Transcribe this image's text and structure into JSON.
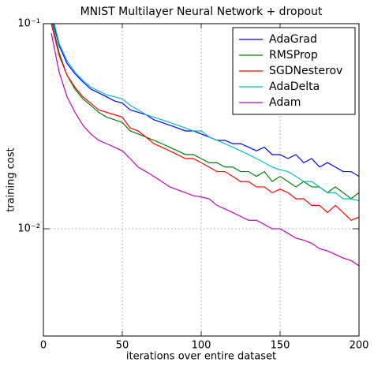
{
  "chart_data": {
    "type": "line",
    "title": "MNIST Multilayer Neural Network + dropout",
    "xlabel": "iterations over entire dataset",
    "ylabel": "training cost",
    "x": [
      5,
      10,
      15,
      20,
      25,
      30,
      35,
      40,
      45,
      50,
      55,
      60,
      65,
      70,
      75,
      80,
      85,
      90,
      95,
      100,
      105,
      110,
      115,
      120,
      125,
      130,
      135,
      140,
      145,
      150,
      155,
      160,
      165,
      170,
      175,
      180,
      185,
      190,
      195,
      200
    ],
    "series": [
      {
        "name": "AdaGrad",
        "color": "#0000ff",
        "values": [
          0.11,
          0.078,
          0.064,
          0.057,
          0.052,
          0.048,
          0.046,
          0.044,
          0.042,
          0.041,
          0.038,
          0.037,
          0.036,
          0.034,
          0.033,
          0.032,
          0.031,
          0.03,
          0.03,
          0.029,
          0.028,
          0.027,
          0.027,
          0.026,
          0.026,
          0.025,
          0.024,
          0.025,
          0.023,
          0.023,
          0.022,
          0.023,
          0.021,
          0.022,
          0.02,
          0.021,
          0.02,
          0.019,
          0.019,
          0.018
        ]
      },
      {
        "name": "RMSProp",
        "color": "#008000",
        "values": [
          0.105,
          0.072,
          0.056,
          0.048,
          0.043,
          0.04,
          0.037,
          0.035,
          0.034,
          0.033,
          0.03,
          0.029,
          0.028,
          0.027,
          0.026,
          0.025,
          0.024,
          0.023,
          0.023,
          0.022,
          0.021,
          0.021,
          0.02,
          0.02,
          0.019,
          0.019,
          0.018,
          0.019,
          0.017,
          0.018,
          0.017,
          0.016,
          0.017,
          0.016,
          0.016,
          0.015,
          0.016,
          0.015,
          0.014,
          0.015
        ]
      },
      {
        "name": "SGDNesterov",
        "color": "#ff0000",
        "values": [
          0.1,
          0.07,
          0.056,
          0.049,
          0.044,
          0.041,
          0.038,
          0.037,
          0.036,
          0.035,
          0.031,
          0.03,
          0.028,
          0.026,
          0.025,
          0.024,
          0.023,
          0.022,
          0.022,
          0.021,
          0.02,
          0.019,
          0.019,
          0.018,
          0.017,
          0.017,
          0.016,
          0.016,
          0.015,
          0.0156,
          0.015,
          0.014,
          0.014,
          0.013,
          0.013,
          0.012,
          0.013,
          0.012,
          0.011,
          0.0114
        ]
      },
      {
        "name": "AdaDelta",
        "color": "#00bfbf",
        "values": [
          0.115,
          0.08,
          0.066,
          0.058,
          0.053,
          0.049,
          0.047,
          0.045,
          0.044,
          0.043,
          0.04,
          0.038,
          0.036,
          0.035,
          0.034,
          0.033,
          0.032,
          0.031,
          0.03,
          0.03,
          0.028,
          0.027,
          0.026,
          0.025,
          0.024,
          0.023,
          0.022,
          0.021,
          0.02,
          0.0194,
          0.019,
          0.018,
          0.017,
          0.017,
          0.016,
          0.015,
          0.015,
          0.014,
          0.014,
          0.0137
        ]
      },
      {
        "name": "Adam",
        "color": "#bf00bf",
        "values": [
          0.09,
          0.058,
          0.044,
          0.037,
          0.032,
          0.029,
          0.027,
          0.026,
          0.025,
          0.024,
          0.022,
          0.02,
          0.019,
          0.018,
          0.017,
          0.016,
          0.0155,
          0.015,
          0.0145,
          0.0143,
          0.014,
          0.013,
          0.0125,
          0.012,
          0.0115,
          0.011,
          0.011,
          0.0105,
          0.01,
          0.01,
          0.0095,
          0.009,
          0.0088,
          0.0085,
          0.008,
          0.0078,
          0.0075,
          0.0072,
          0.007,
          0.0066
        ]
      }
    ],
    "xlim": [
      0,
      200
    ],
    "xticks": [
      0,
      50,
      100,
      150,
      200
    ],
    "ylim": [
      0.003,
      0.1
    ],
    "yticks": [
      {
        "value": 0.01,
        "label": "10⁻²"
      },
      {
        "value": 0.1,
        "label": "10⁻¹"
      }
    ],
    "yscale": "log",
    "grid": true,
    "legend": "upper right"
  }
}
